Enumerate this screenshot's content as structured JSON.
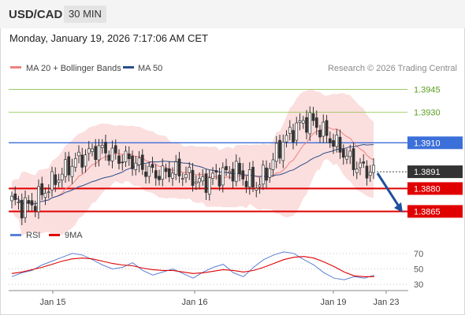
{
  "header": {
    "symbol": "USD/CAD",
    "timeframe": "30 MIN"
  },
  "datetime": "Monday, January 19, 2026 7:17:06 AM CET",
  "credit": "Research © 2026 Trading Central",
  "legend": {
    "ma20": {
      "label": "MA 20 + Bollinger Bands",
      "color": "#f08080"
    },
    "ma50": {
      "label": "MA 50",
      "color": "#2a4e8a"
    },
    "rsi": {
      "label": "RSI",
      "color": "#5a7fd6"
    },
    "ma9": {
      "label": "9MA",
      "color": "#e00000"
    }
  },
  "colors": {
    "resistance": "#8bc34a",
    "pivot": "#3b6fd9",
    "support": "#e00000",
    "bands": "#fbdede",
    "arrow": "#1f4e9c",
    "up_candle": "#ffffff",
    "down_candle": "#333333"
  },
  "chart_data": [
    {
      "type": "candlestick",
      "x_ticks": [
        "Jan 15",
        "Jan 16",
        "Jan 19",
        "Jan 23"
      ],
      "price_range": [
        1.3858,
        1.3952
      ],
      "levels": [
        {
          "value": "1.3945",
          "role": "resistance"
        },
        {
          "value": "1.3930",
          "role": "resistance"
        },
        {
          "value": "1.3910",
          "role": "pivot"
        },
        {
          "value": "1.3880",
          "role": "support"
        },
        {
          "value": "1.3865",
          "role": "support"
        }
      ],
      "last_price": "1.3891",
      "close_path": [
        1.3872,
        1.3868,
        1.387,
        1.3878,
        1.3885,
        1.3892,
        1.3898,
        1.3902,
        1.3906,
        1.3904,
        1.39,
        1.3899,
        1.3895,
        1.3891,
        1.3889,
        1.3892,
        1.389,
        1.3887,
        1.3883,
        1.3888,
        1.389,
        1.3892,
        1.3886,
        1.3882,
        1.3891,
        1.3905,
        1.3915,
        1.3922,
        1.3925,
        1.3919,
        1.3912,
        1.3905,
        1.3897,
        1.3893,
        1.3891
      ]
    },
    {
      "type": "line",
      "title": "RSI",
      "y_ticks": [
        "70",
        "50",
        "30"
      ],
      "ylim": [
        25,
        80
      ],
      "rsi": [
        40,
        45,
        48,
        55,
        60,
        65,
        70,
        68,
        62,
        55,
        50,
        52,
        58,
        48,
        42,
        46,
        50,
        44,
        38,
        46,
        52,
        56,
        45,
        40,
        52,
        62,
        68,
        72,
        70,
        62,
        55,
        45,
        38,
        36,
        40,
        38,
        42
      ],
      "ma9": [
        44,
        46,
        49,
        52,
        56,
        60,
        63,
        64,
        63,
        60,
        57,
        55,
        54,
        51,
        49,
        48,
        48,
        46,
        44,
        45,
        47,
        49,
        48,
        46,
        48,
        52,
        57,
        62,
        65,
        66,
        64,
        59,
        53,
        46,
        41,
        40,
        40
      ]
    }
  ]
}
